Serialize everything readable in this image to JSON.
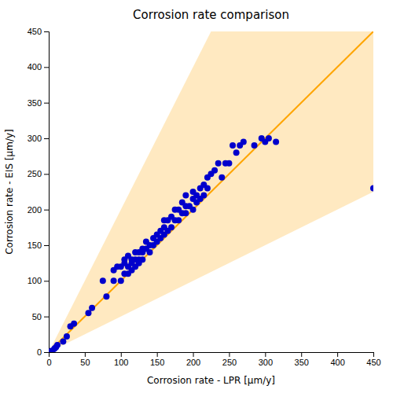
{
  "chart_data": {
    "type": "scatter",
    "title": "Corrosion rate comparison",
    "xlabel": "Corrosion rate - LPR [μm/y]",
    "ylabel": "Corrosion rate - EIS [μm/y]",
    "xlim": [
      0,
      450
    ],
    "ylim": [
      0,
      450
    ],
    "xticks": [
      0,
      50,
      100,
      150,
      200,
      250,
      300,
      350,
      400,
      450
    ],
    "yticks": [
      0,
      50,
      100,
      150,
      200,
      250,
      300,
      350,
      400,
      450
    ],
    "series": [
      {
        "type": "area",
        "color": "#FFDDA0",
        "x": [
          0,
          225,
          450,
          450,
          0
        ],
        "values": [
          0,
          450,
          450,
          225,
          0
        ]
      },
      {
        "type": "line",
        "color": "#FFA500",
        "x": [
          0,
          450
        ],
        "values": [
          0,
          450
        ]
      },
      {
        "type": "scatter",
        "color": "#0000CC",
        "x": [
          2,
          4,
          5,
          8,
          10,
          12,
          20,
          25,
          30,
          35,
          55,
          60,
          75,
          80,
          90,
          90,
          95,
          100,
          100,
          105,
          105,
          105,
          110,
          110,
          110,
          115,
          115,
          115,
          120,
          120,
          120,
          125,
          125,
          125,
          130,
          130,
          130,
          135,
          135,
          140,
          140,
          145,
          145,
          150,
          150,
          155,
          155,
          160,
          160,
          160,
          165,
          165,
          170,
          170,
          175,
          175,
          180,
          180,
          185,
          185,
          190,
          190,
          190,
          195,
          200,
          200,
          200,
          205,
          205,
          210,
          210,
          215,
          215,
          220,
          220,
          225,
          230,
          235,
          240,
          245,
          250,
          255,
          260,
          265,
          270,
          285,
          295,
          300,
          305,
          315,
          450
        ],
        "values": [
          0,
          2,
          1,
          5,
          7,
          10,
          15,
          22,
          36,
          40,
          55,
          62,
          100,
          78,
          100,
          115,
          120,
          100,
          120,
          110,
          125,
          130,
          110,
          120,
          135,
          115,
          125,
          130,
          120,
          130,
          140,
          125,
          130,
          140,
          130,
          140,
          145,
          145,
          155,
          140,
          150,
          150,
          160,
          155,
          165,
          160,
          170,
          165,
          175,
          185,
          170,
          185,
          175,
          190,
          185,
          200,
          185,
          200,
          195,
          210,
          195,
          205,
          220,
          205,
          200,
          215,
          225,
          210,
          220,
          215,
          230,
          220,
          235,
          230,
          245,
          250,
          255,
          265,
          245,
          265,
          265,
          290,
          280,
          290,
          295,
          290,
          300,
          295,
          300,
          295,
          230
        ]
      }
    ]
  }
}
